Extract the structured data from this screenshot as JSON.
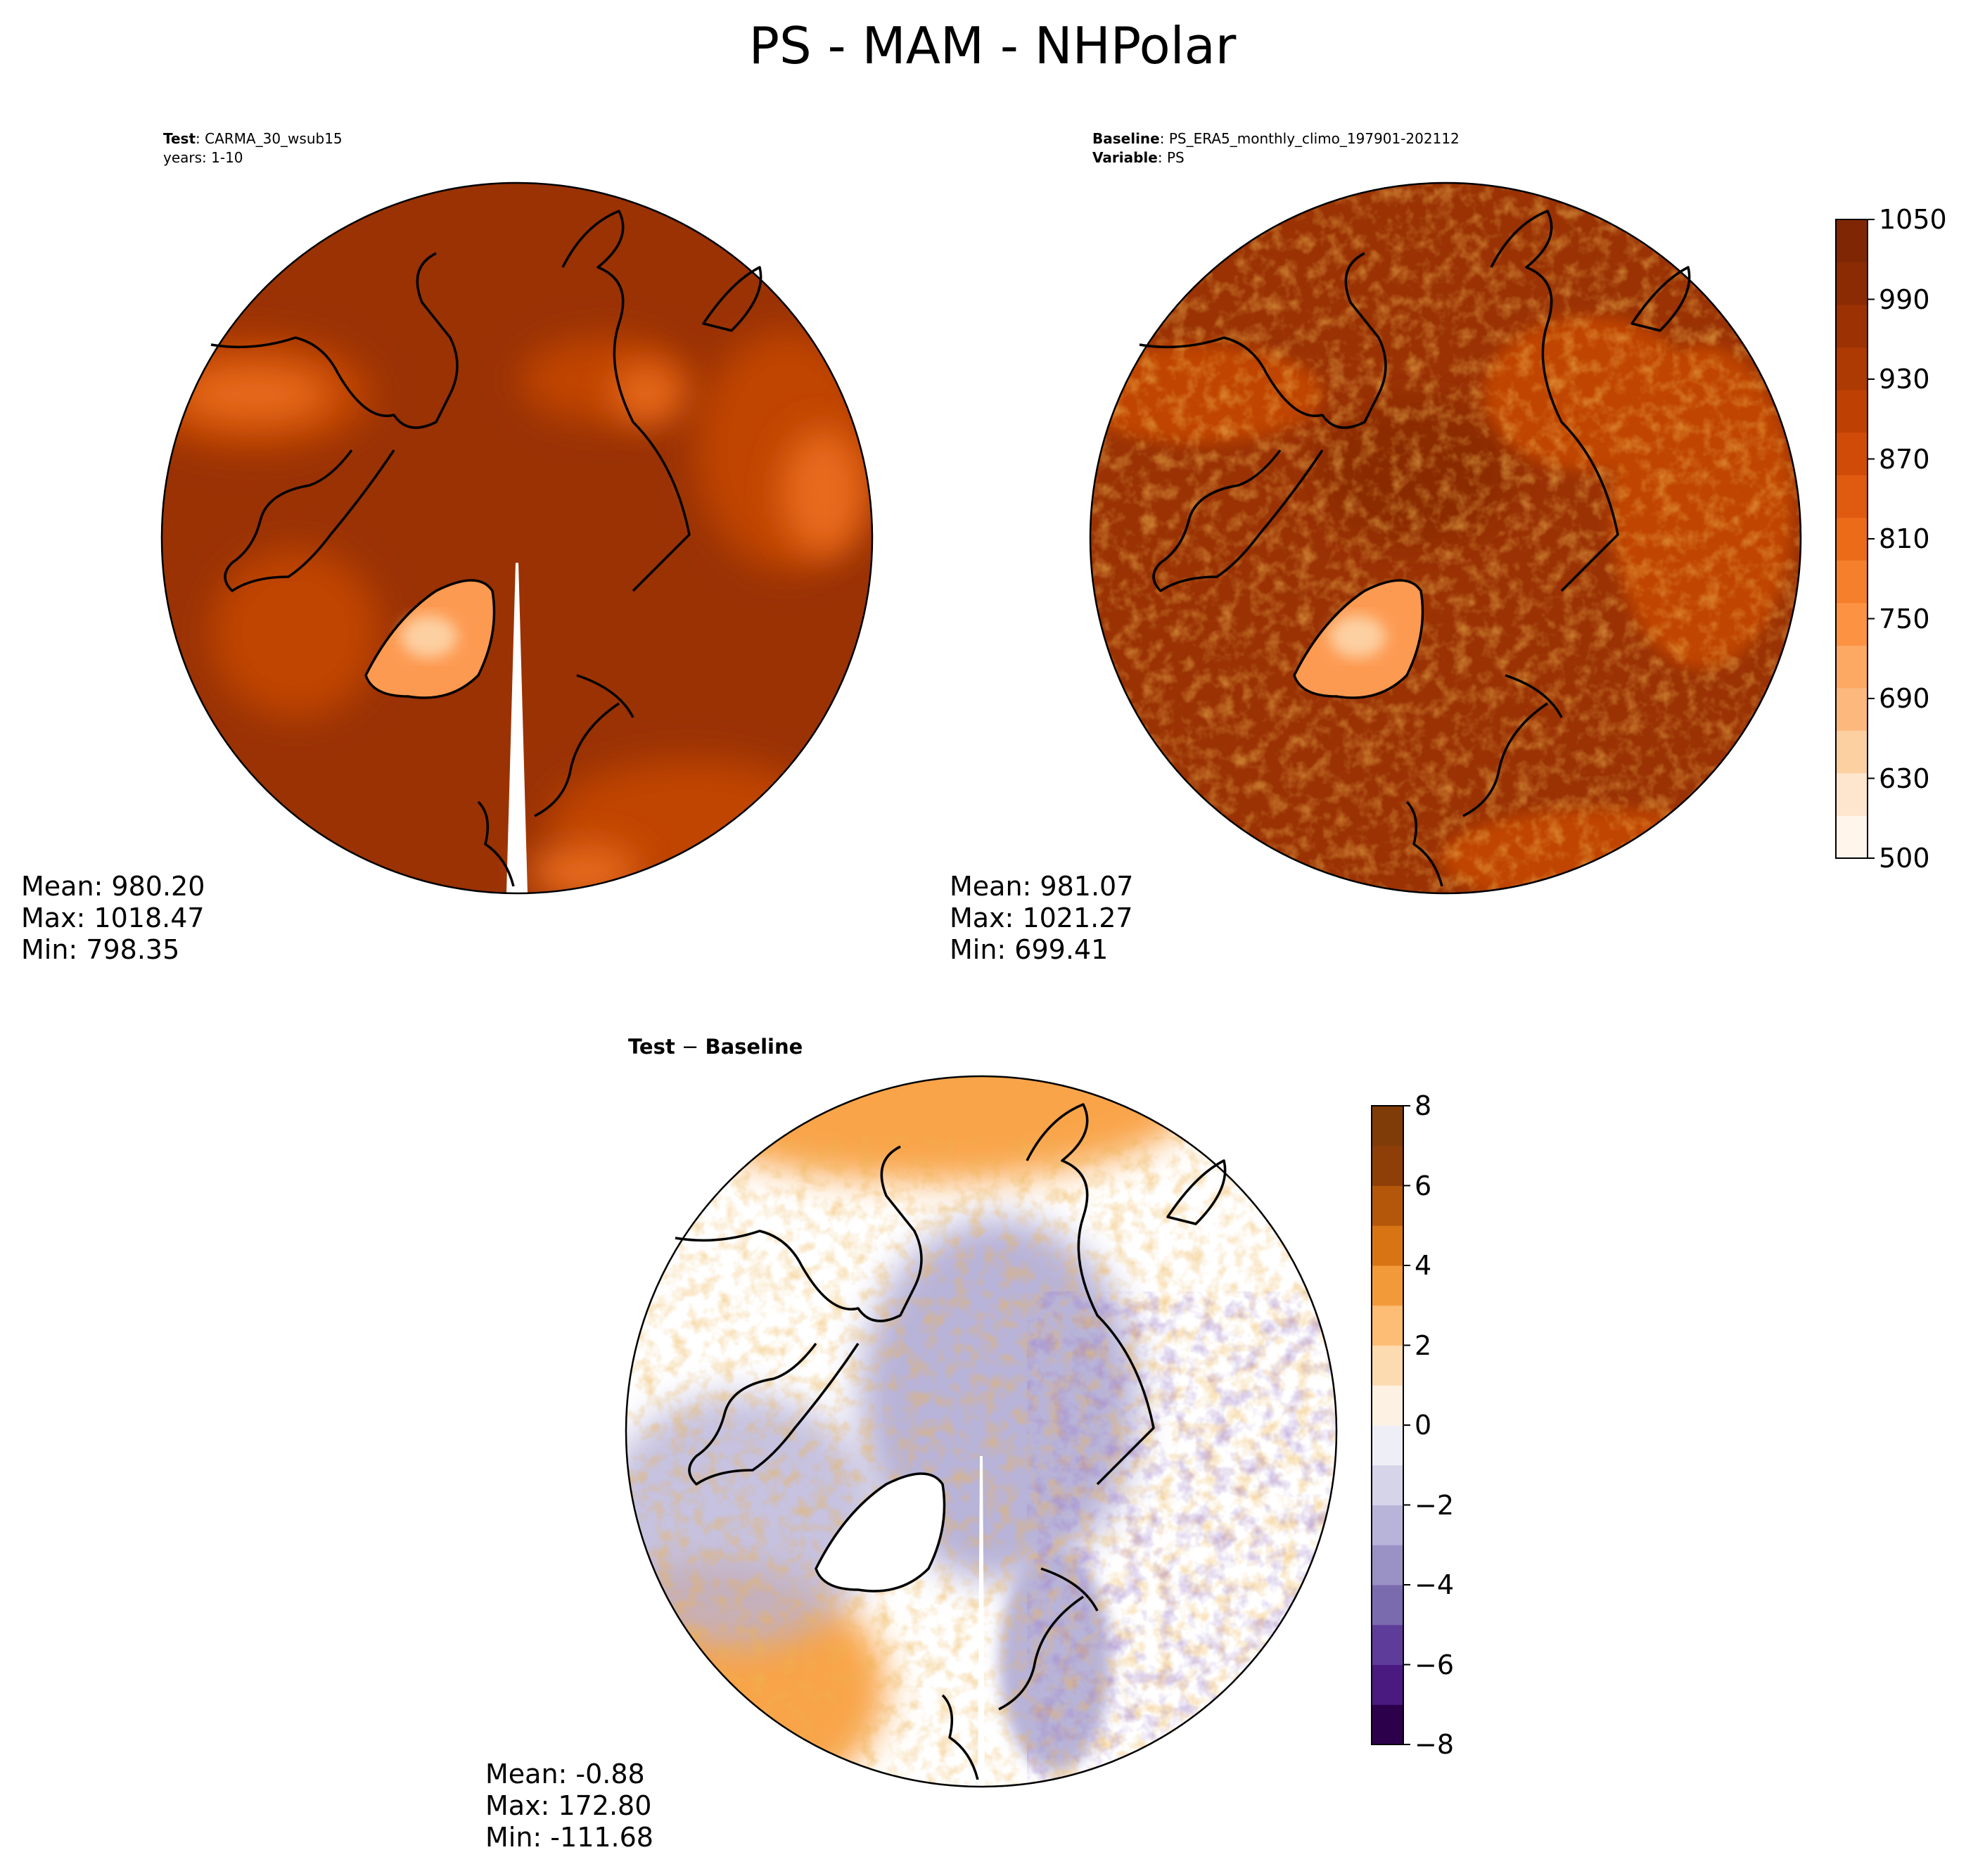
{
  "suptitle": "PS - MAM - NHPolar",
  "panels": {
    "test": {
      "title_key": "Test",
      "title_sep": ": ",
      "title_value": "CARMA_30_wsub15",
      "subtitle": "years: 1-10",
      "stats": {
        "mean": "Mean: 980.20",
        "max": "Max: 1018.47",
        "min": "Min: 798.35"
      }
    },
    "baseline": {
      "title_key": "Baseline",
      "title_sep": ": ",
      "title_value": "PS_ERA5_monthly_climo_197901-202112",
      "var_key": "Variable",
      "var_sep": ": ",
      "var_value": "PS",
      "stats": {
        "mean": "Mean: 981.07",
        "max": "Max: 1021.27",
        "min": "Min: 699.41"
      }
    },
    "diff": {
      "title_a": "Test",
      "title_op": " − ",
      "title_b": "Baseline",
      "stats": {
        "mean": "Mean: -0.88",
        "max": "Max: 172.80",
        "min": "Min: -111.68"
      }
    }
  },
  "colorbars": {
    "main": {
      "ticks": [
        "1050",
        "990",
        "930",
        "870",
        "810",
        "750",
        "690",
        "630",
        "500"
      ],
      "colors": [
        "#fff5eb",
        "#fee6ce",
        "#fdd0a2",
        "#fdb97d",
        "#fda863",
        "#fd9243",
        "#f57f2a",
        "#ec6b19",
        "#e05a10",
        "#d04b07",
        "#be4103",
        "#ad3903",
        "#9c3203",
        "#8b2b04",
        "#7f2704"
      ]
    },
    "diff": {
      "ticks": [
        "8",
        "6",
        "4",
        "2",
        "0",
        "−2",
        "−4",
        "−6",
        "−8"
      ],
      "colors": [
        "#2d004b",
        "#4a1a80",
        "#5e3c99",
        "#7a6aae",
        "#9a91c5",
        "#b8b3d8",
        "#d6d4e9",
        "#eeeef6",
        "#fcf1e3",
        "#fddbb1",
        "#fdbd74",
        "#f29a3a",
        "#d97414",
        "#b5570b",
        "#8e3f07",
        "#7f3b08"
      ]
    }
  },
  "map_colors": {
    "high": "#9a3204",
    "mid": "#c04403",
    "low": "#e86a1a",
    "greenland": "#fd9a52",
    "greenland_core": "#fdd0a2",
    "diff_orange": "#f9a44a",
    "diff_light": "#fdd9ae",
    "diff_purple": "#b8b3d8",
    "diff_dark": "#5e3c99"
  }
}
